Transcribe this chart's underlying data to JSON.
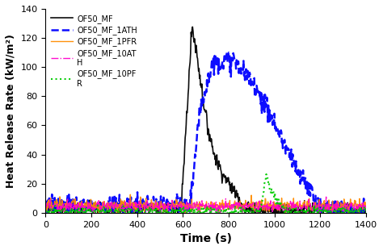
{
  "title": "",
  "xlabel": "Time (s)",
  "ylabel": "Heat Release Rate (kW/m²)",
  "xlim": [
    0,
    1400
  ],
  "ylim": [
    0,
    140
  ],
  "xticks": [
    0,
    200,
    400,
    600,
    800,
    1000,
    1200,
    1400
  ],
  "yticks": [
    0,
    20,
    40,
    60,
    80,
    100,
    120,
    140
  ],
  "background_color": "#ffffff",
  "series": [
    {
      "label": "OF50_MF",
      "color": "#000000",
      "linestyle": "solid",
      "linewidth": 1.2,
      "noise_level": 2.5,
      "base_level": 3,
      "segments": [
        {
          "t_start": 0,
          "t_end": 595,
          "hrr_start": 3,
          "hrr_end": 3
        },
        {
          "t_start": 595,
          "t_end": 640,
          "hrr_start": 10,
          "hrr_end": 128
        },
        {
          "t_start": 640,
          "t_end": 660,
          "hrr_start": 128,
          "hrr_end": 110
        },
        {
          "t_start": 660,
          "t_end": 700,
          "hrr_start": 110,
          "hrr_end": 65
        },
        {
          "t_start": 700,
          "t_end": 740,
          "hrr_start": 65,
          "hrr_end": 38
        },
        {
          "t_start": 740,
          "t_end": 790,
          "hrr_start": 38,
          "hrr_end": 22
        },
        {
          "t_start": 790,
          "t_end": 840,
          "hrr_start": 22,
          "hrr_end": 12
        },
        {
          "t_start": 840,
          "t_end": 870,
          "hrr_start": 12,
          "hrr_end": 2
        },
        {
          "t_start": 870,
          "t_end": 1400,
          "hrr_start": 2,
          "hrr_end": 2
        }
      ]
    },
    {
      "label": "OF50_MF_1ATH",
      "color": "#0000ff",
      "linestyle": "dashed",
      "linewidth": 1.8,
      "noise_level": 3.5,
      "base_level": 3,
      "segments": [
        {
          "t_start": 0,
          "t_end": 630,
          "hrr_start": 5,
          "hrr_end": 5
        },
        {
          "t_start": 630,
          "t_end": 680,
          "hrr_start": 5,
          "hrr_end": 75
        },
        {
          "t_start": 680,
          "t_end": 730,
          "hrr_start": 75,
          "hrr_end": 103
        },
        {
          "t_start": 730,
          "t_end": 820,
          "hrr_start": 103,
          "hrr_end": 105
        },
        {
          "t_start": 820,
          "t_end": 920,
          "hrr_start": 105,
          "hrr_end": 86
        },
        {
          "t_start": 920,
          "t_end": 1020,
          "hrr_start": 86,
          "hrr_end": 55
        },
        {
          "t_start": 1020,
          "t_end": 1100,
          "hrr_start": 55,
          "hrr_end": 28
        },
        {
          "t_start": 1100,
          "t_end": 1150,
          "hrr_start": 28,
          "hrr_end": 18
        },
        {
          "t_start": 1150,
          "t_end": 1190,
          "hrr_start": 18,
          "hrr_end": 5
        },
        {
          "t_start": 1190,
          "t_end": 1400,
          "hrr_start": 3,
          "hrr_end": 2
        }
      ]
    },
    {
      "label": "OF50_MF_1PFR",
      "color": "#ff8c00",
      "linestyle": "solid",
      "linewidth": 1.0,
      "noise_level": 2.0,
      "base_level": 5,
      "segments": [
        {
          "t_start": 0,
          "t_end": 1400,
          "hrr_start": 5,
          "hrr_end": 5
        }
      ]
    },
    {
      "label": "OF50_MF_10ATH",
      "color": "#ff00cc",
      "linestyle": "dashdot",
      "linewidth": 1.0,
      "noise_level": 2.0,
      "base_level": 4,
      "segments": [
        {
          "t_start": 0,
          "t_end": 1400,
          "hrr_start": 4,
          "hrr_end": 4
        }
      ]
    },
    {
      "label": "OF50_MF_10PFR",
      "color": "#00cc00",
      "linestyle": "dotted",
      "linewidth": 1.5,
      "noise_level": 1.5,
      "base_level": 1,
      "segments": [
        {
          "t_start": 0,
          "t_end": 940,
          "hrr_start": 1,
          "hrr_end": 1
        },
        {
          "t_start": 940,
          "t_end": 962,
          "hrr_start": 1,
          "hrr_end": 26
        },
        {
          "t_start": 962,
          "t_end": 985,
          "hrr_start": 26,
          "hrr_end": 14
        },
        {
          "t_start": 985,
          "t_end": 1050,
          "hrr_start": 14,
          "hrr_end": 1
        },
        {
          "t_start": 1050,
          "t_end": 1400,
          "hrr_start": 1,
          "hrr_end": 1
        }
      ]
    }
  ],
  "legend_labels": [
    "OF50_MF",
    "OF50_MF_1ATH",
    "OF50_MF_1PFR",
    "OF50_MF_10AT\nH",
    "OF50_MF_10PF\nR"
  ]
}
